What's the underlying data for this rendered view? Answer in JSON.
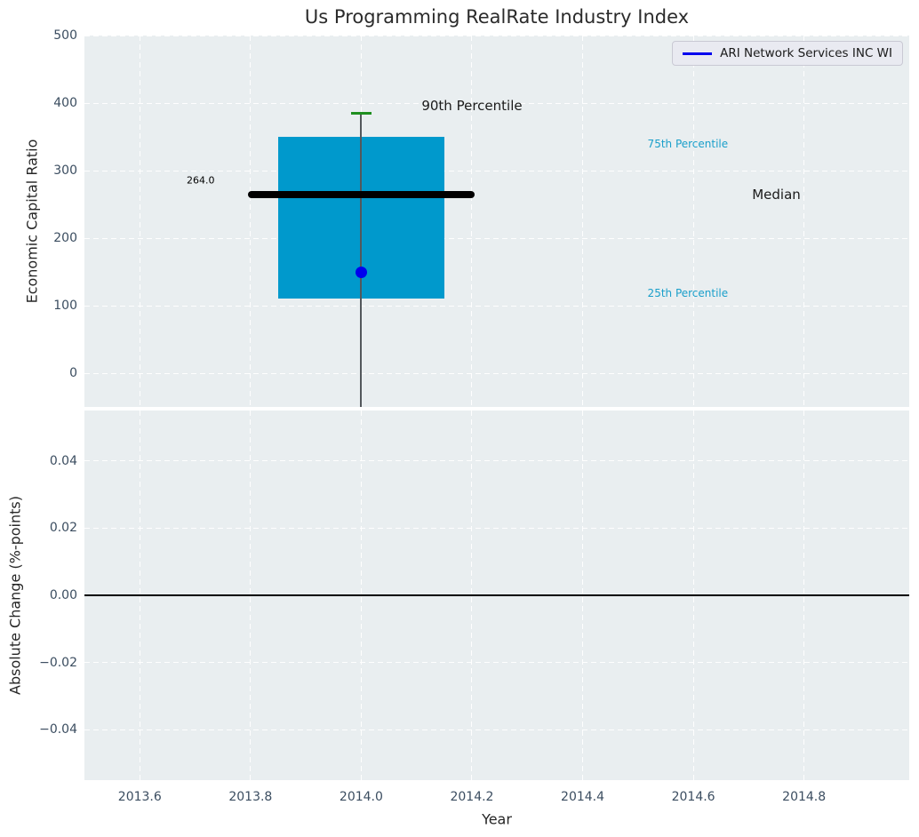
{
  "colors": {
    "figure_bg": "#ffffff",
    "axes_bg": "#e9eef0",
    "grid": "#ffffff",
    "box_fill": "#0099cc",
    "median": "#000000",
    "whisker": "#53585c",
    "p90_cap": "#1f8f1f",
    "point": "#0000ee",
    "legend_line": "#0000ee",
    "tick_label": "#3b4d60",
    "cyan_text": "#1a9fca",
    "text": "#262626",
    "zero_line": "#000000"
  },
  "chart_data": [
    {
      "type": "box",
      "panel": "top",
      "title": "Us Programming RealRate Industry Index",
      "ylabel": "Economic Capital Ratio",
      "xlim": [
        2013.5,
        2014.99
      ],
      "ylim": [
        -50,
        500
      ],
      "grid": true,
      "grid_style": "white-dashed",
      "legend_position": "upper right",
      "legend_entries": [
        {
          "label": "ARI Network Services INC WI",
          "color": "#0000ee",
          "marker": "line"
        }
      ],
      "yticks": [
        {
          "v": 0,
          "label": "0"
        },
        {
          "v": 100,
          "label": "100"
        },
        {
          "v": 200,
          "label": "200"
        },
        {
          "v": 300,
          "label": "300"
        },
        {
          "v": 400,
          "label": "400"
        },
        {
          "v": 500,
          "label": "500"
        }
      ],
      "box": {
        "x_center": 2014.0,
        "box_left": 2013.85,
        "box_right": 2014.15,
        "q1": 110,
        "median": 264.0,
        "q3": 350,
        "p90": 385,
        "median_line_left": 2013.795,
        "median_line_right": 2014.205,
        "cap_half_width": 0.019,
        "whisker_bottom_clipped": true,
        "company_point": {
          "x": 2014.0,
          "y": 150,
          "series": "ARI Network Services INC WI"
        }
      },
      "annotations": [
        {
          "text": "264.0",
          "x": 2013.71,
          "y": 286,
          "color": "#000000",
          "size": 11
        },
        {
          "text": "90th Percentile",
          "x": 2014.2,
          "y": 396,
          "color": "#1a1a1a",
          "size": 15
        },
        {
          "text": "75th Percentile",
          "x": 2014.59,
          "y": 340,
          "color": "#1a9fca",
          "size": 12
        },
        {
          "text": "Median",
          "x": 2014.75,
          "y": 264,
          "color": "#1a1a1a",
          "size": 15
        },
        {
          "text": "25th Percentile",
          "x": 2014.59,
          "y": 118,
          "color": "#1a9fca",
          "size": 12
        }
      ]
    },
    {
      "type": "line",
      "panel": "bottom",
      "ylabel": "Absolute Change (%-points)",
      "xlabel": "Year",
      "xlim": [
        2013.5,
        2014.99
      ],
      "ylim": [
        -0.055,
        0.055
      ],
      "grid": true,
      "grid_style": "white-dashed",
      "zero_line": 0.0,
      "yticks": [
        {
          "v": 0.04,
          "label": "0.04"
        },
        {
          "v": 0.02,
          "label": "0.02"
        },
        {
          "v": 0.0,
          "label": "0.00"
        },
        {
          "v": -0.02,
          "label": "−0.02"
        },
        {
          "v": -0.04,
          "label": "−0.04"
        }
      ],
      "xticks": [
        {
          "v": 2013.6,
          "label": "2013.6"
        },
        {
          "v": 2013.8,
          "label": "2013.8"
        },
        {
          "v": 2014.0,
          "label": "2014.0"
        },
        {
          "v": 2014.2,
          "label": "2014.2"
        },
        {
          "v": 2014.4,
          "label": "2014.4"
        },
        {
          "v": 2014.6,
          "label": "2014.6"
        },
        {
          "v": 2014.8,
          "label": "2014.8"
        }
      ]
    }
  ]
}
